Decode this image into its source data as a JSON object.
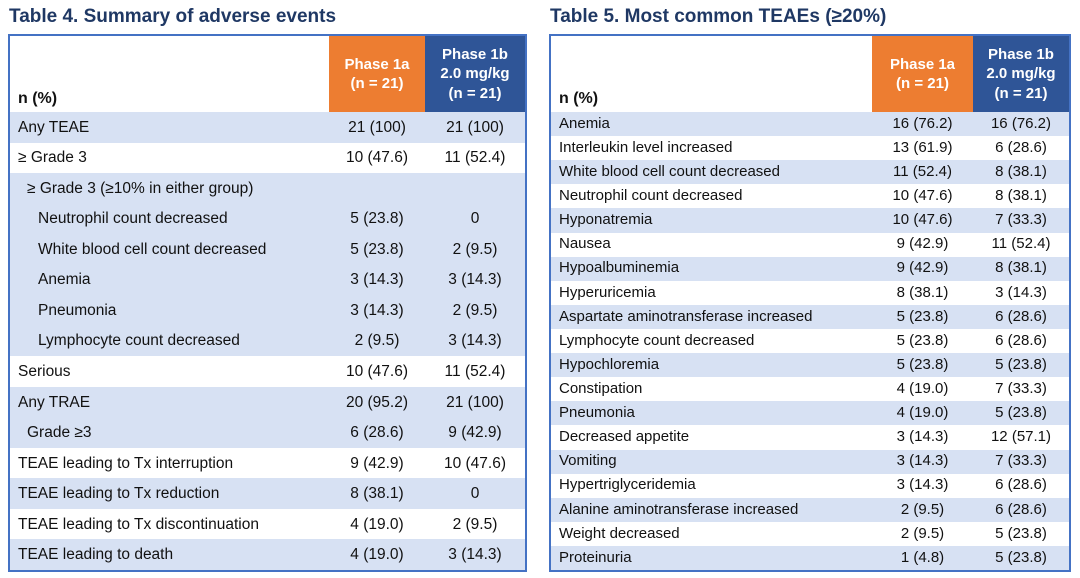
{
  "colors": {
    "title": "#1F3864",
    "orange_header": "#ED7D31",
    "blue_header": "#2F5597",
    "row_shade": "#D7E1F3",
    "border": "#4472C4",
    "text": "#111111"
  },
  "tables": [
    {
      "id": "summary-of-adverse-events",
      "title": "Table 4. Summary of adverse events",
      "columns": {
        "label": "n (%)",
        "phase1a": "Phase 1a\n(n = 21)",
        "phase1b": "Phase 1b\n2.0 mg/kg\n(n = 21)"
      },
      "rows": [
        {
          "label": "Any TEAE",
          "phase1a": "21 (100)",
          "phase1b": "21 (100)",
          "shaded": true,
          "indent": 0
        },
        {
          "label": "≥ Grade 3",
          "phase1a": "10 (47.6)",
          "phase1b": "11 (52.4)",
          "shaded": false,
          "indent": 0
        },
        {
          "label": "≥ Grade 3 (≥10% in either group)",
          "phase1a": "",
          "phase1b": "",
          "shaded": true,
          "indent": 1
        },
        {
          "label": "Neutrophil count decreased",
          "phase1a": "5 (23.8)",
          "phase1b": "0",
          "shaded": true,
          "indent": 2
        },
        {
          "label": "White blood cell count decreased",
          "phase1a": "5 (23.8)",
          "phase1b": "2 (9.5)",
          "shaded": true,
          "indent": 2
        },
        {
          "label": "Anemia",
          "phase1a": "3 (14.3)",
          "phase1b": "3 (14.3)",
          "shaded": true,
          "indent": 2
        },
        {
          "label": "Pneumonia",
          "phase1a": "3 (14.3)",
          "phase1b": "2 (9.5)",
          "shaded": true,
          "indent": 2
        },
        {
          "label": "Lymphocyte count decreased",
          "phase1a": "2 (9.5)",
          "phase1b": "3 (14.3)",
          "shaded": true,
          "indent": 2
        },
        {
          "label": "Serious",
          "phase1a": "10 (47.6)",
          "phase1b": "11 (52.4)",
          "shaded": false,
          "indent": 0
        },
        {
          "label": "Any TRAE",
          "phase1a": "20 (95.2)",
          "phase1b": "21 (100)",
          "shaded": true,
          "indent": 0
        },
        {
          "label": "Grade ≥3",
          "phase1a": "6 (28.6)",
          "phase1b": "9 (42.9)",
          "shaded": true,
          "indent": 1
        },
        {
          "label": "TEAE leading to Tx interruption",
          "phase1a": "9 (42.9)",
          "phase1b": "10 (47.6)",
          "shaded": false,
          "indent": 0
        },
        {
          "label": "TEAE leading to Tx reduction",
          "phase1a": "8 (38.1)",
          "phase1b": "0",
          "shaded": true,
          "indent": 0
        },
        {
          "label": "TEAE leading to Tx discontinuation",
          "phase1a": "4 (19.0)",
          "phase1b": "2 (9.5)",
          "shaded": false,
          "indent": 0
        },
        {
          "label": "TEAE leading to death",
          "phase1a": "4 (19.0)",
          "phase1b": "3 (14.3)",
          "shaded": true,
          "indent": 0
        }
      ]
    },
    {
      "id": "most-common-teaes",
      "title": "Table 5. Most common TEAEs (≥20%)",
      "columns": {
        "label": "n (%)",
        "phase1a": "Phase 1a\n(n = 21)",
        "phase1b": "Phase 1b\n2.0 mg/kg\n(n = 21)"
      },
      "rows": [
        {
          "label": "Anemia",
          "phase1a": "16 (76.2)",
          "phase1b": "16 (76.2)",
          "shaded": true,
          "indent": 0
        },
        {
          "label": "Interleukin level increased",
          "phase1a": "13 (61.9)",
          "phase1b": "6 (28.6)",
          "shaded": false,
          "indent": 0
        },
        {
          "label": "White blood cell count decreased",
          "phase1a": "11 (52.4)",
          "phase1b": "8 (38.1)",
          "shaded": true,
          "indent": 0
        },
        {
          "label": "Neutrophil count decreased",
          "phase1a": "10 (47.6)",
          "phase1b": "8 (38.1)",
          "shaded": false,
          "indent": 0
        },
        {
          "label": "Hyponatremia",
          "phase1a": "10 (47.6)",
          "phase1b": "7 (33.3)",
          "shaded": true,
          "indent": 0
        },
        {
          "label": "Nausea",
          "phase1a": "9 (42.9)",
          "phase1b": "11 (52.4)",
          "shaded": false,
          "indent": 0
        },
        {
          "label": "Hypoalbuminemia",
          "phase1a": "9 (42.9)",
          "phase1b": "8 (38.1)",
          "shaded": true,
          "indent": 0
        },
        {
          "label": "Hyperuricemia",
          "phase1a": "8 (38.1)",
          "phase1b": "3 (14.3)",
          "shaded": false,
          "indent": 0
        },
        {
          "label": "Aspartate aminotransferase increased",
          "phase1a": "5 (23.8)",
          "phase1b": "6 (28.6)",
          "shaded": true,
          "indent": 0
        },
        {
          "label": "Lymphocyte count decreased",
          "phase1a": "5 (23.8)",
          "phase1b": "6 (28.6)",
          "shaded": false,
          "indent": 0
        },
        {
          "label": "Hypochloremia",
          "phase1a": "5 (23.8)",
          "phase1b": "5 (23.8)",
          "shaded": true,
          "indent": 0
        },
        {
          "label": "Constipation",
          "phase1a": "4 (19.0)",
          "phase1b": "7 (33.3)",
          "shaded": false,
          "indent": 0
        },
        {
          "label": "Pneumonia",
          "phase1a": "4 (19.0)",
          "phase1b": "5 (23.8)",
          "shaded": true,
          "indent": 0
        },
        {
          "label": "Decreased appetite",
          "phase1a": "3 (14.3)",
          "phase1b": "12 (57.1)",
          "shaded": false,
          "indent": 0
        },
        {
          "label": "Vomiting",
          "phase1a": "3 (14.3)",
          "phase1b": "7 (33.3)",
          "shaded": true,
          "indent": 0
        },
        {
          "label": "Hypertriglyceridemia",
          "phase1a": "3 (14.3)",
          "phase1b": "6 (28.6)",
          "shaded": false,
          "indent": 0
        },
        {
          "label": "Alanine aminotransferase increased",
          "phase1a": "2 (9.5)",
          "phase1b": "6 (28.6)",
          "shaded": true,
          "indent": 0
        },
        {
          "label": "Weight decreased",
          "phase1a": "2 (9.5)",
          "phase1b": "5 (23.8)",
          "shaded": false,
          "indent": 0
        },
        {
          "label": "Proteinuria",
          "phase1a": "1 (4.8)",
          "phase1b": "5 (23.8)",
          "shaded": true,
          "indent": 0
        }
      ]
    }
  ]
}
